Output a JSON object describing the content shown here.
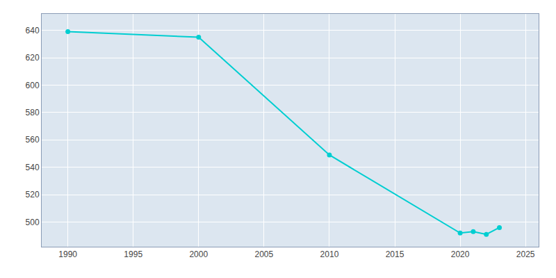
{
  "chart_data": {
    "type": "line",
    "x": [
      1990,
      2000,
      2010,
      2020,
      2021,
      2022,
      2023
    ],
    "values": [
      639,
      635,
      549,
      492,
      493,
      491,
      496
    ],
    "color": "#00CED1",
    "marker": "circle",
    "line_style": "solid",
    "xlim": [
      1988,
      2026
    ],
    "ylim": [
      482,
      652
    ],
    "xticks": [
      1990,
      1995,
      2000,
      2005,
      2010,
      2015,
      2020,
      2025
    ],
    "yticks": [
      500,
      520,
      540,
      560,
      580,
      600,
      620,
      640
    ],
    "grid": true
  }
}
